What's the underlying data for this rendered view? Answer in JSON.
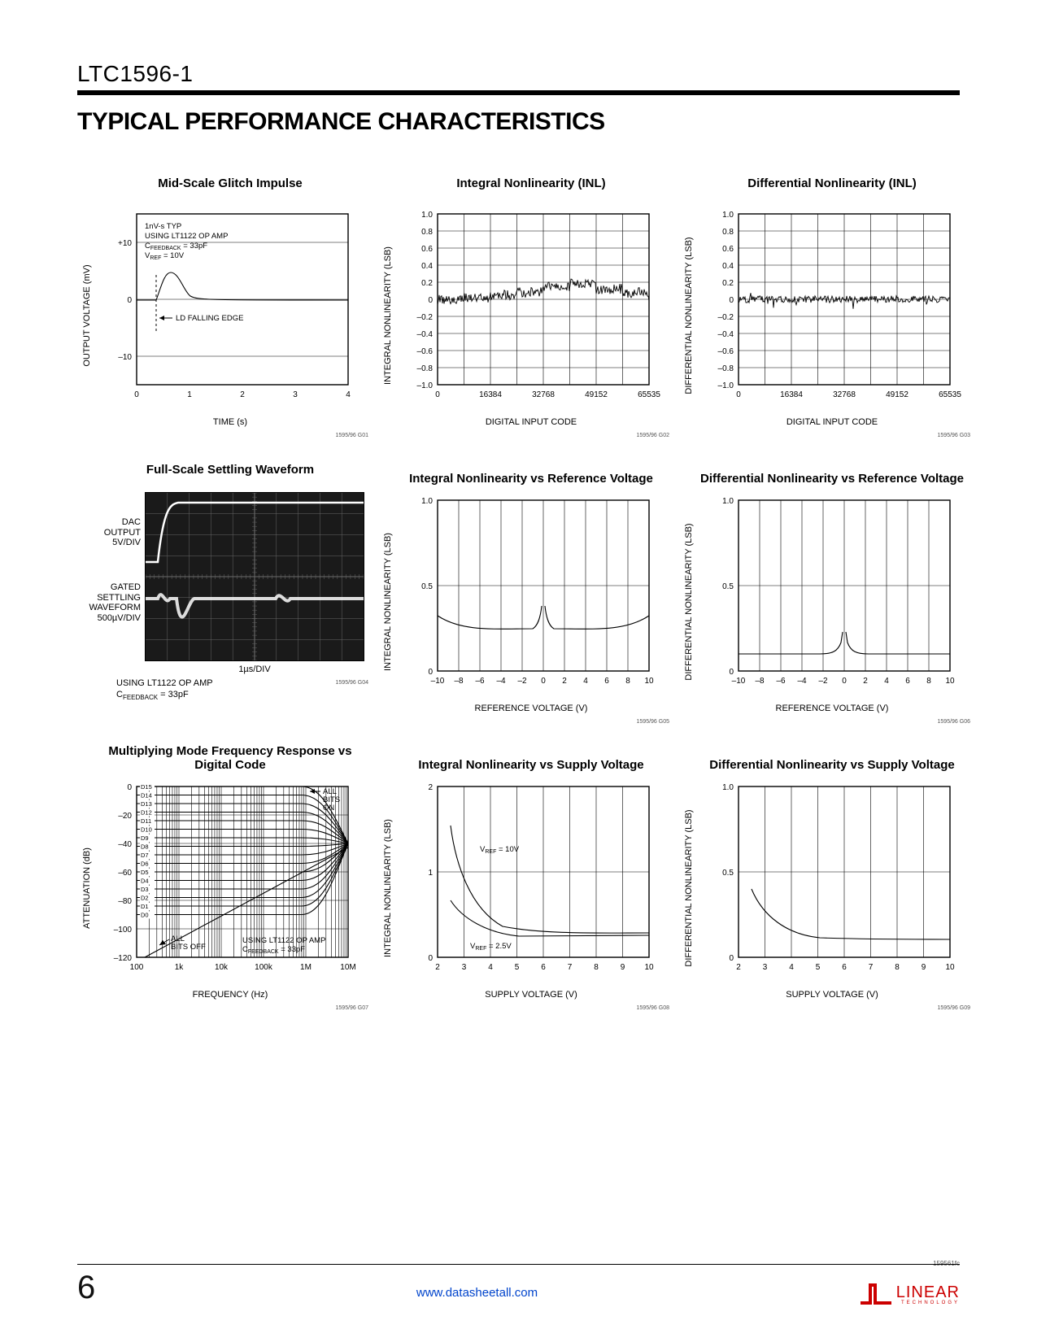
{
  "part_number": "LTC1596-1",
  "section_title": "TYPICAL PERFORMANCE CHARACTERISTICS",
  "footer": {
    "page": "6",
    "url": "www.datasheetall.com",
    "fc_code": "159561fc",
    "logo_main": "LINEAR",
    "logo_sub": "TECHNOLOGY"
  },
  "charts": {
    "c1": {
      "title": "Mid-Scale Glitch Impulse",
      "ylabel": "OUTPUT VOLTAGE (mV)",
      "xlabel": "TIME (s)",
      "code": "1595/96 G01",
      "yticks": [
        "+10",
        "0",
        "–10"
      ],
      "xticks": [
        "0",
        "1",
        "2",
        "3",
        "4"
      ],
      "annot1_l1": "1nV-s TYP",
      "annot1_l2": "USING LT1122 OP AMP",
      "annot1_l3": "= 33pF",
      "annot1_l3_pre": "C",
      "annot1_l3_sub": "FEEDBACK",
      "annot1_l4_pre": "V",
      "annot1_l4_sub": "REF",
      "annot1_l4_post": " = 10V",
      "annot2": "LD FALLING EDGE"
    },
    "c2": {
      "title": "Integral Nonlinearity (INL)",
      "ylabel": "INTEGRAL NONLINEARITY (LSB)",
      "xlabel": "DIGITAL INPUT CODE",
      "code": "1595/96 G02",
      "yticks": [
        "1.0",
        "0.8",
        "0.6",
        "0.4",
        "0.2",
        "0",
        "–0.2",
        "–0.4",
        "–0.6",
        "–0.8",
        "–1.0"
      ],
      "xticks": [
        "0",
        "16384",
        "32768",
        "49152",
        "65535"
      ]
    },
    "c3": {
      "title": "Differential Nonlinearity (INL)",
      "ylabel": "DIFFERENTIAL NONLINEARITY (LSB)",
      "xlabel": "DIGITAL INPUT CODE",
      "code": "1595/96 G03",
      "yticks": [
        "1.0",
        "0.8",
        "0.6",
        "0.4",
        "0.2",
        "0",
        "–0.2",
        "–0.4",
        "–0.6",
        "–0.8",
        "–1.0"
      ],
      "xticks": [
        "0",
        "16384",
        "32768",
        "49152",
        "65535"
      ]
    },
    "c4": {
      "title": "Full-Scale Settling Waveform",
      "side1_l1": "DAC",
      "side1_l2": "OUTPUT",
      "side1_l3": "5V/DIV",
      "side2_l1": "GATED",
      "side2_l2": "SETTLING",
      "side2_l3": "WAVEFORM",
      "side2_l4": "500µV/DIV",
      "xlabel": "1µs/DIV",
      "code": "1595/96 G04",
      "cap_l1": "USING LT1122 OP AMP",
      "cap_l2_pre": "C",
      "cap_l2_sub": "FEEDBACK",
      "cap_l2_post": " = 33pF"
    },
    "c5": {
      "title": "Integral Nonlinearity vs Reference Voltage",
      "ylabel": "INTEGRAL NONLINEARITY (LSB)",
      "xlabel": "REFERENCE VOLTAGE (V)",
      "code": "1595/96 G05",
      "yticks": [
        "1.0",
        "0.5",
        "0"
      ],
      "xticks": [
        "–10",
        "–8",
        "–6",
        "–4",
        "–2",
        "0",
        "2",
        "4",
        "6",
        "8",
        "10"
      ]
    },
    "c6": {
      "title": "Differential Nonlinearity vs Reference Voltage",
      "ylabel": "DIFFERENTIAL NONLINEARITY (LSB)",
      "xlabel": "REFERENCE VOLTAGE (V)",
      "code": "1595/96 G06",
      "yticks": [
        "1.0",
        "0.5",
        "0"
      ],
      "xticks": [
        "–10",
        "–8",
        "–6",
        "–4",
        "–2",
        "0",
        "2",
        "4",
        "6",
        "8",
        "10"
      ]
    },
    "c7": {
      "title": "Multiplying Mode Frequency Response vs Digital Code",
      "ylabel": "ATTENUATION (dB)",
      "xlabel": "FREQUENCY (Hz)",
      "code": "1595/96 G07",
      "yticks": [
        "0",
        "–20",
        "–40",
        "–60",
        "–80",
        "–100",
        "–120"
      ],
      "xticks": [
        "100",
        "1k",
        "10k",
        "100k",
        "1M",
        "10M"
      ],
      "bit_labels": [
        "D15",
        "D14",
        "D13",
        "D12",
        "D11",
        "D10",
        "D9",
        "D8",
        "D7",
        "D6",
        "D5",
        "D4",
        "D3",
        "D2",
        "D1",
        "D0"
      ],
      "annot_all_on_l1": "ALL",
      "annot_all_on_l2": "BITS",
      "annot_all_on_l3": "ON",
      "annot_all_off_l1": "ALL",
      "annot_all_off_l2": "BITS OFF",
      "annot_amp_l1": "USING LT1122 OP AMP",
      "annot_amp_l2_pre": "C",
      "annot_amp_l2_sub": "FEEDBACK",
      "annot_amp_l2_post": " = 33pF"
    },
    "c8": {
      "title": "Integral Nonlinearity vs Supply Voltage",
      "ylabel": "INTEGRAL NONLINEARITY (LSB)",
      "xlabel": "SUPPLY VOLTAGE (V)",
      "code": "1595/96 G08",
      "yticks": [
        "2",
        "1",
        "0"
      ],
      "xticks": [
        "2",
        "3",
        "4",
        "5",
        "6",
        "7",
        "8",
        "9",
        "10"
      ],
      "annot1_pre": "V",
      "annot1_sub": "REF",
      "annot1_post": " = 10V",
      "annot2_pre": "V",
      "annot2_sub": "REF",
      "annot2_post": " = 2.5V"
    },
    "c9": {
      "title": "Differential Nonlinearity vs Supply Voltage",
      "ylabel": "DIFFERENTIAL NONLINEARITY (LSB)",
      "xlabel": "SUPPLY VOLTAGE (V)",
      "code": "1595/96 G09",
      "yticks": [
        "1.0",
        "0.5",
        "0"
      ],
      "xticks": [
        "2",
        "3",
        "4",
        "5",
        "6",
        "7",
        "8",
        "9",
        "10"
      ]
    }
  }
}
